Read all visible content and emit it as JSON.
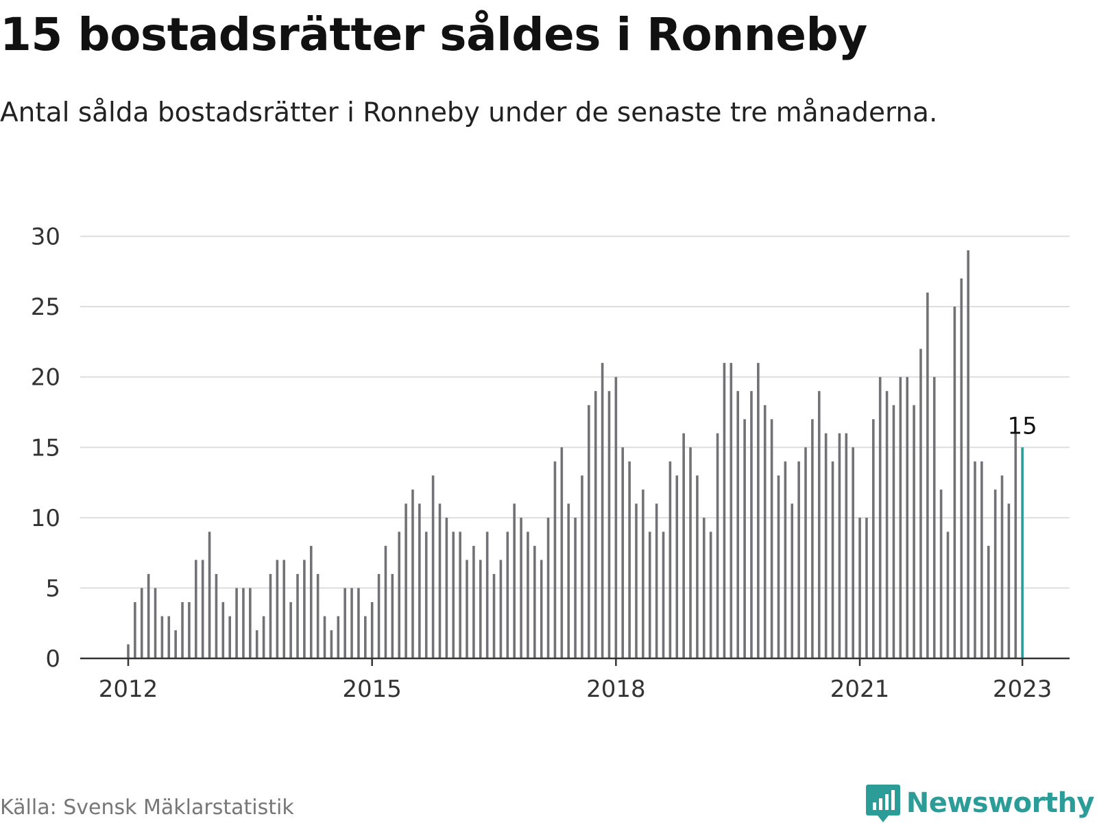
{
  "title": "15 bostadsrätter såldes i Ronneby",
  "subtitle": "Antal sålda bostadsrätter i Ronneby under de senaste tre månaderna.",
  "source": "Källa: Svensk Mäklarstatistik",
  "brand": {
    "name": "Newsworthy",
    "icon": "newsworthy-logo-icon",
    "color": "#2b9c97"
  },
  "colors": {
    "bar": "#727176",
    "highlight": "#2a9d96",
    "grid": "#dddddd",
    "axis": "#333333"
  },
  "chart_data": {
    "type": "bar",
    "start": "2012-01",
    "frequency": "monthly",
    "xticks": [
      "2012",
      "2015",
      "2018",
      "2021",
      "2023"
    ],
    "yticks": [
      0,
      5,
      10,
      15,
      20,
      25,
      30
    ],
    "ylim": [
      0,
      31
    ],
    "grid": true,
    "annotation": "15",
    "values": [
      1,
      4,
      5,
      6,
      5,
      3,
      3,
      2,
      4,
      4,
      7,
      7,
      9,
      6,
      4,
      3,
      5,
      5,
      5,
      2,
      3,
      6,
      7,
      7,
      4,
      6,
      7,
      8,
      6,
      3,
      2,
      3,
      5,
      5,
      5,
      3,
      4,
      6,
      8,
      6,
      9,
      11,
      12,
      11,
      9,
      13,
      11,
      10,
      9,
      9,
      7,
      8,
      7,
      9,
      6,
      7,
      9,
      11,
      10,
      9,
      8,
      7,
      10,
      14,
      15,
      11,
      10,
      13,
      18,
      19,
      21,
      19,
      20,
      15,
      14,
      11,
      12,
      9,
      11,
      9,
      14,
      13,
      16,
      15,
      13,
      10,
      9,
      16,
      21,
      21,
      19,
      17,
      19,
      21,
      18,
      17,
      13,
      14,
      11,
      14,
      15,
      17,
      19,
      16,
      14,
      16,
      16,
      15,
      10,
      10,
      17,
      20,
      19,
      18,
      20,
      20,
      18,
      22,
      26,
      20,
      12,
      9,
      25,
      27,
      29,
      14,
      14,
      8,
      12,
      13,
      11,
      16,
      15
    ]
  }
}
